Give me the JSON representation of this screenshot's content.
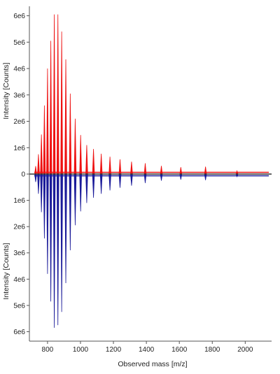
{
  "chart_data": {
    "type": "bar",
    "title": "",
    "xlabel": "Observed mass [m/z]",
    "ylabel_top": "Intensity [Counts]",
    "ylabel_bottom": "Intensity [Counts]",
    "xlim": [
      690,
      2160
    ],
    "ylim_top": [
      0,
      6200000
    ],
    "ylim_bottom": [
      0,
      6200000
    ],
    "x_ticks": [
      800,
      1000,
      1200,
      1400,
      1600,
      1800,
      2000
    ],
    "x_tick_labels": [
      "800",
      "1000",
      "1200",
      "1400",
      "1600",
      "1800",
      "2000"
    ],
    "y_ticks_top": [
      1000000,
      2000000,
      3000000,
      4000000,
      5000000,
      6000000
    ],
    "y_tick_labels_top": [
      "1e6",
      "2e6",
      "3e6",
      "4e6",
      "5e6",
      "6e6"
    ],
    "y_ticks_bottom": [
      0,
      1000000,
      2000000,
      3000000,
      4000000,
      5000000,
      6000000
    ],
    "y_tick_labels_bottom": [
      "0",
      "1e6",
      "2e6",
      "3e6",
      "4e6",
      "5e6",
      "6e6"
    ],
    "grid": false,
    "legend": "none",
    "series": [
      {
        "direction": "up",
        "color": "#ee1111",
        "points": [
          {
            "x": 728,
            "y": 300000
          },
          {
            "x": 745,
            "y": 750000
          },
          {
            "x": 763,
            "y": 1500000
          },
          {
            "x": 781,
            "y": 2600000
          },
          {
            "x": 800,
            "y": 4000000
          },
          {
            "x": 820,
            "y": 5050000
          },
          {
            "x": 841,
            "y": 6050000
          },
          {
            "x": 863,
            "y": 6050000
          },
          {
            "x": 886,
            "y": 5400000
          },
          {
            "x": 911,
            "y": 4350000
          },
          {
            "x": 938,
            "y": 3050000
          },
          {
            "x": 968,
            "y": 2100000
          },
          {
            "x": 1001,
            "y": 1480000
          },
          {
            "x": 1038,
            "y": 1100000
          },
          {
            "x": 1079,
            "y": 950000
          },
          {
            "x": 1126,
            "y": 770000
          },
          {
            "x": 1179,
            "y": 660000
          },
          {
            "x": 1240,
            "y": 560000
          },
          {
            "x": 1310,
            "y": 470000
          },
          {
            "x": 1393,
            "y": 410000
          },
          {
            "x": 1491,
            "y": 310000
          },
          {
            "x": 1609,
            "y": 260000
          },
          {
            "x": 1759,
            "y": 280000
          },
          {
            "x": 1950,
            "y": 120000
          }
        ]
      },
      {
        "direction": "down",
        "color": "#1a1a99",
        "points": [
          {
            "x": 728,
            "y": 300000
          },
          {
            "x": 745,
            "y": 750000
          },
          {
            "x": 763,
            "y": 1450000
          },
          {
            "x": 781,
            "y": 2450000
          },
          {
            "x": 800,
            "y": 3800000
          },
          {
            "x": 820,
            "y": 4850000
          },
          {
            "x": 841,
            "y": 5850000
          },
          {
            "x": 863,
            "y": 5750000
          },
          {
            "x": 886,
            "y": 5250000
          },
          {
            "x": 911,
            "y": 4150000
          },
          {
            "x": 938,
            "y": 2900000
          },
          {
            "x": 968,
            "y": 1950000
          },
          {
            "x": 1001,
            "y": 1420000
          },
          {
            "x": 1038,
            "y": 1100000
          },
          {
            "x": 1079,
            "y": 900000
          },
          {
            "x": 1126,
            "y": 750000
          },
          {
            "x": 1179,
            "y": 620000
          },
          {
            "x": 1240,
            "y": 520000
          },
          {
            "x": 1310,
            "y": 440000
          },
          {
            "x": 1393,
            "y": 340000
          },
          {
            "x": 1491,
            "y": 250000
          },
          {
            "x": 1609,
            "y": 210000
          },
          {
            "x": 1759,
            "y": 230000
          },
          {
            "x": 1950,
            "y": 100000
          }
        ]
      }
    ]
  }
}
